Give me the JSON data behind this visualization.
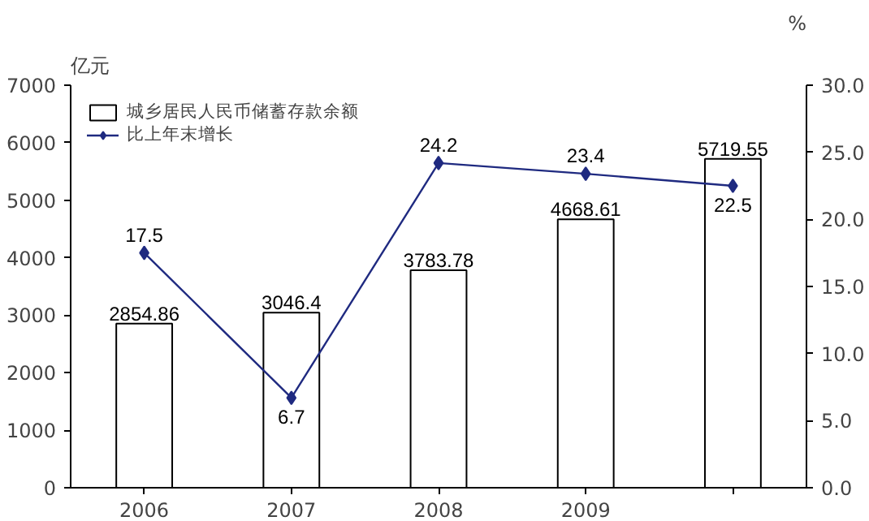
{
  "chart_data": {
    "type": "bar",
    "ylabel": "亿元",
    "y2label": "%",
    "categories": [
      "2006",
      "2007",
      "2008",
      "2009",
      null
    ],
    "series": [
      {
        "name": "城乡居民人民币储蓄存款余额",
        "color": "#ffffff",
        "values": [
          2854.86,
          3046.4,
          3783.78,
          4668.61,
          5719.55
        ]
      },
      {
        "name": "比上年末增长",
        "type": "line",
        "axis": "y2",
        "color": "#1f2a80",
        "values": [
          17.5,
          6.7,
          24.2,
          23.4,
          22.5
        ]
      }
    ],
    "data_labels": true,
    "ylim": [
      0,
      7000
    ],
    "yticks": [
      0,
      1000,
      2000,
      3000,
      4000,
      5000,
      6000,
      7000
    ],
    "y2lim": [
      0,
      30
    ],
    "y2ticks": [
      {
        "value": 0,
        "label": "0.0"
      },
      {
        "value": 5,
        "label": "5.0"
      },
      {
        "value": 10,
        "label": "10.0"
      },
      {
        "value": 15,
        "label": "15.0"
      },
      {
        "value": 20,
        "label": "20.0"
      },
      {
        "value": 25,
        "label": "25.0"
      },
      {
        "value": 30,
        "label": "30.0"
      }
    ],
    "marker": "diamond",
    "legend": "top left",
    "grid": false
  }
}
